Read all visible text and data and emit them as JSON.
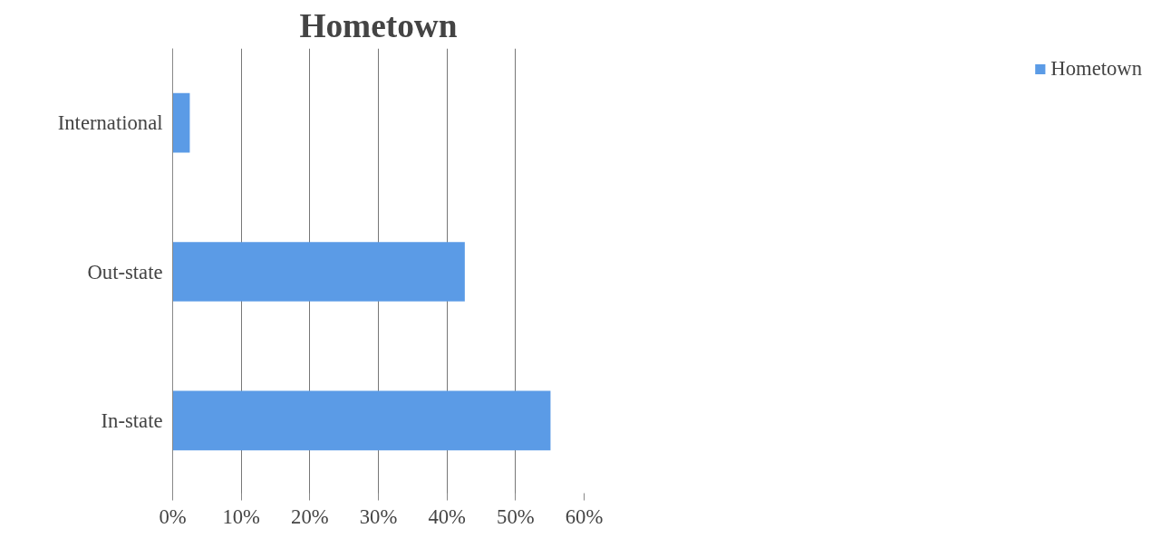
{
  "chart_data": {
    "type": "bar",
    "title": "Hometown",
    "orientation": "horizontal",
    "categories": [
      "International",
      "Out-state",
      "In-state"
    ],
    "series": [
      {
        "name": "Hometown",
        "color": "#5b9be6",
        "values": [
          2.5,
          42.6,
          55.1
        ]
      }
    ],
    "xlim": [
      0,
      60
    ],
    "xticks": [
      {
        "value": 0,
        "label": "0%"
      },
      {
        "value": 10,
        "label": "10%"
      },
      {
        "value": 20,
        "label": "20%"
      },
      {
        "value": 30,
        "label": "30%"
      },
      {
        "value": 40,
        "label": "40%"
      },
      {
        "value": 50,
        "label": "50%"
      },
      {
        "value": 60,
        "label": "60%"
      }
    ],
    "grid": "x",
    "legend": "right"
  }
}
